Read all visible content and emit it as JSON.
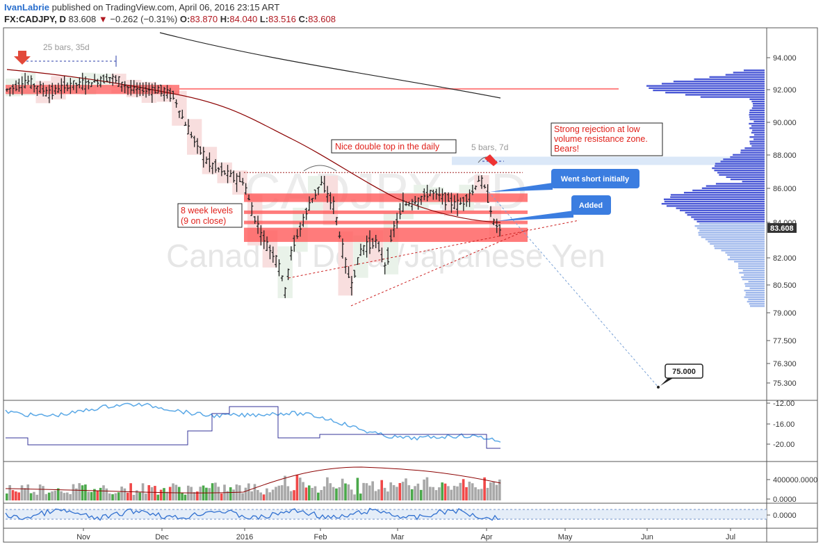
{
  "header": {
    "author": "IvanLabrie",
    "published": "published on TradingView.com, April 06, 2016 23:15 ART",
    "symbol": "FX:CADJPY, D",
    "last": "83.608",
    "change": "−0.262 (−0.31%)",
    "o_label": "O:",
    "o": "83.870",
    "h_label": "H:",
    "h": "84.040",
    "l_label": "L:",
    "l": "83.516",
    "c_label": "C:",
    "c": "83.608"
  },
  "watermark": {
    "ticker": "CADJPY, 1D",
    "name": "Canadian Dollar/Japanese Yen"
  },
  "annotations": {
    "bars_top": "25 bars, 35d",
    "bars_mid": "5 bars, 7d",
    "double_top": "Nice double top in the daily",
    "week_levels_1": "8 week levels",
    "week_levels_2": "(9 on close)",
    "rejection_1": "Strong rejection at low",
    "rejection_2": "volume resistance zone.",
    "rejection_3": "Bears!",
    "short": "Went short initially",
    "added": "Added",
    "target": "75.000",
    "current_price": "83.608"
  },
  "colors": {
    "bull_bg": "#e9f2e9",
    "bear_bg": "#f8dede",
    "zone": "#ff5a5a",
    "bar": "#222222",
    "sma_fast": "#8b0000",
    "sma_slow": "#222222",
    "volume_profile": "#4a58d6",
    "vol_up": "#4aa84a",
    "vol_down": "#f04848",
    "vol_neutral": "#a8a8a8",
    "indicator_light": "#5aa8e6",
    "indicator_dark": "#333399"
  },
  "chart_data": {
    "type": "candlestick",
    "title": "Canadian Dollar/Japanese Yen",
    "symbol": "FX:CADJPY",
    "timeframe": "D",
    "price_axis": [
      "94.000",
      "92.000",
      "90.000",
      "88.000",
      "86.000",
      "84.000",
      "82.000",
      "80.500",
      "79.000",
      "77.500",
      "76.300",
      "75.300"
    ],
    "ylim": [
      74.6,
      95.6
    ],
    "x_axis": [
      "Nov",
      "Dec",
      "2016",
      "Feb",
      "Mar",
      "Apr",
      "May",
      "Jun",
      "Jul"
    ],
    "zones": [
      {
        "from": 91.9,
        "to": 92.3
      },
      {
        "from": 85.2,
        "to": 85.7
      },
      {
        "from": 84.5,
        "to": 84.7
      },
      {
        "from": 83.9,
        "to": 84.1
      },
      {
        "from": 82.9,
        "to": 83.7
      }
    ],
    "double_top_level": 86.95,
    "rejection_zone": {
      "from": 87.4,
      "to": 87.9
    },
    "target_level": 75.0,
    "last_close": 83.608,
    "osc1_axis": [
      "-12.00",
      "-16.00",
      "-20.00"
    ],
    "volume_axis": [
      "400000.0000",
      "0.0000"
    ],
    "osc2_axis": [
      "0.0000"
    ]
  }
}
